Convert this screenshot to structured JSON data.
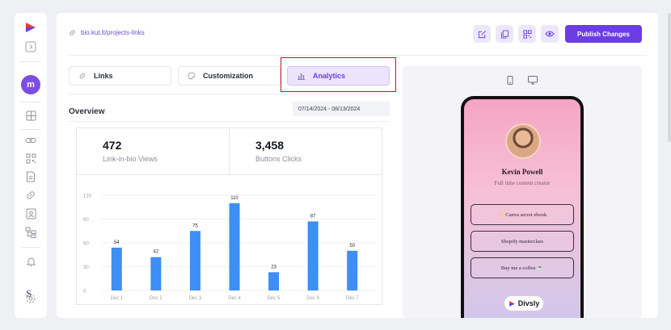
{
  "header": {
    "url": "bio.kut.lt/projects-links",
    "publish_label": "Publish Changes"
  },
  "sidebar": {
    "avatar_initial": "m",
    "brand_letter": "S"
  },
  "tabs": [
    {
      "label": "Links",
      "active": false
    },
    {
      "label": "Customization",
      "active": false
    },
    {
      "label": "Analytics",
      "active": true
    }
  ],
  "overview": {
    "title": "Overview",
    "date_range": "07/14/2024 - 08/13/2024",
    "stats": [
      {
        "value": "472",
        "label": "Link-in-bio Views"
      },
      {
        "value": "3,458",
        "label": "Buttons Clicks"
      }
    ]
  },
  "chart_data": {
    "type": "bar",
    "categories": [
      "Dec 1",
      "Dec 2",
      "Dec 3",
      "Dec 4",
      "Dec 5",
      "Dec 6",
      "Dec 7"
    ],
    "values": [
      54,
      42,
      75,
      110,
      23,
      87,
      50
    ],
    "yticks": [
      0,
      30,
      60,
      90,
      120
    ],
    "ylim": [
      0,
      120
    ],
    "grid": true,
    "bar_color": "#3d8ef5"
  },
  "preview": {
    "name": "Kevin Powell",
    "subtitle": "Full time content creator",
    "links": [
      "✨ Canva secret ebook",
      "Shopify masterclass",
      "Buy me a coffee ☕"
    ],
    "brand": "Divsly"
  },
  "colors": {
    "accent": "#6b3de3",
    "bar": "#3d8ef5"
  }
}
